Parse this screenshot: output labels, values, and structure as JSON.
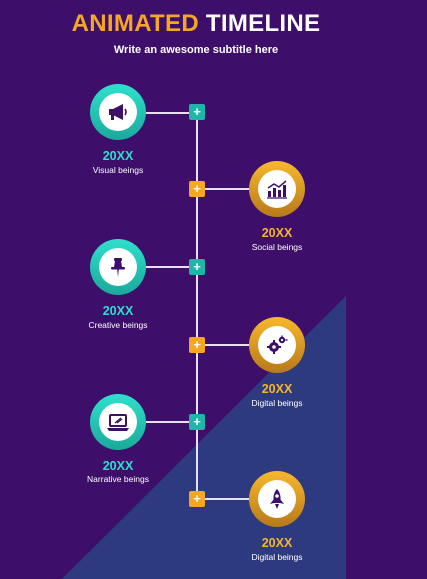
{
  "title": {
    "part1": "ANIMATED",
    "part2": "TIMELINE"
  },
  "subtitle": "Write an awesome subtitle here",
  "colors": {
    "background": "#3d0f6b",
    "triangle": "#2e3a80",
    "teal": "#1fb5a8",
    "gold": "#f5a623",
    "icon": "#3d0f6b"
  },
  "items": [
    {
      "year": "20XX",
      "label": "Visual beings",
      "icon": "megaphone-icon",
      "marker": "+",
      "side": "left",
      "color": "teal"
    },
    {
      "year": "20XX",
      "label": "Social beings",
      "icon": "bar-chart-icon",
      "marker": "+",
      "side": "right",
      "color": "gold"
    },
    {
      "year": "20XX",
      "label": "Creative beings",
      "icon": "pushpin-icon",
      "marker": "+",
      "side": "left",
      "color": "teal"
    },
    {
      "year": "20XX",
      "label": "Digital beings",
      "icon": "gears-icon",
      "marker": "+",
      "side": "right",
      "color": "gold"
    },
    {
      "year": "20XX",
      "label": "Narrative beings",
      "icon": "laptop-icon",
      "marker": "+",
      "side": "left",
      "color": "teal"
    },
    {
      "year": "20XX",
      "label": "Digital beings",
      "icon": "rocket-icon",
      "marker": "+",
      "side": "right",
      "color": "gold"
    }
  ]
}
